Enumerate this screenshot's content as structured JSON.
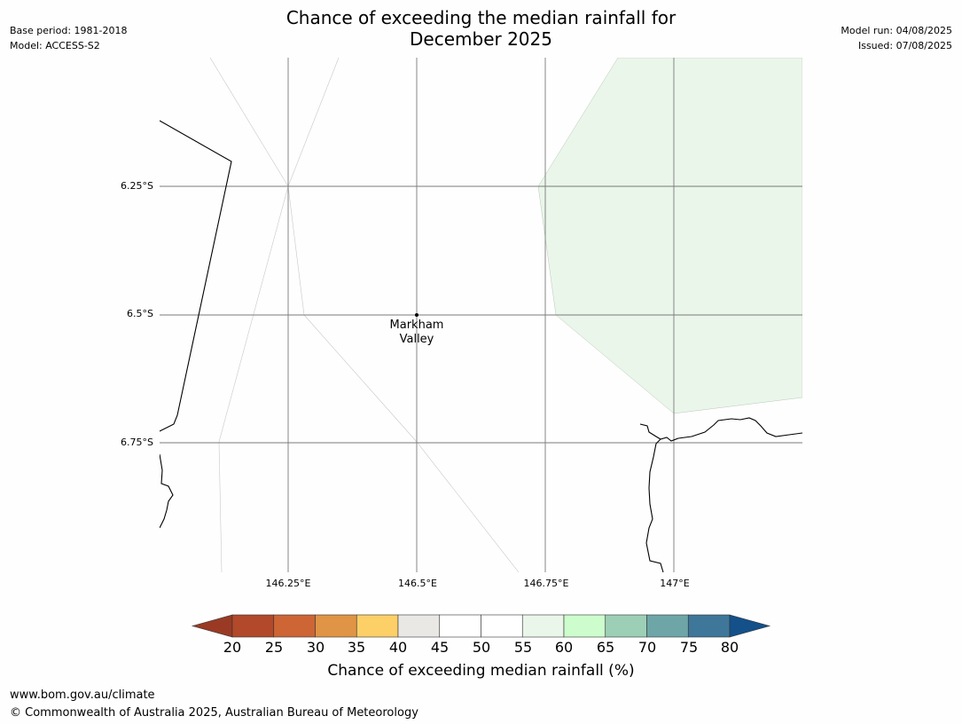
{
  "title_line1": "Chance of exceeding the median rainfall for",
  "title_line2": "December 2025",
  "meta_left": {
    "base_period": "Base period: 1981-2018",
    "model": "Model: ACCESS-S2"
  },
  "meta_right": {
    "model_run": "Model run: 04/08/2025",
    "issued": "Issued: 07/08/2025"
  },
  "map": {
    "lat_ticks": [
      "6.25°S",
      "6.5°S",
      "6.75°S"
    ],
    "lon_ticks": [
      "146.25°E",
      "146.5°E",
      "146.75°E",
      "147°E"
    ],
    "place": {
      "name_line1": "Markham",
      "name_line2": "Valley",
      "lon": 146.5,
      "lat": -6.5
    },
    "shaded_category": {
      "range": "55-60",
      "color": "#eaf6ea"
    }
  },
  "colorbar": {
    "title": "Chance of exceeding median rainfall (%)",
    "tick_labels": [
      "20",
      "25",
      "30",
      "35",
      "40",
      "45",
      "50",
      "55",
      "60",
      "65",
      "70",
      "75",
      "80"
    ],
    "low_extend_color": "#9a3a24",
    "high_extend_color": "#14508a",
    "colors": [
      "#b2492a",
      "#cd6535",
      "#e09445",
      "#fdcf67",
      "#e9e8e5",
      "#ffffff",
      "#ffffff",
      "#eaf6ea",
      "#cdfccd",
      "#9dcfb6",
      "#6ea6a8",
      "#3e7799"
    ]
  },
  "footer": {
    "url": "www.bom.gov.au/climate",
    "copyright": "© Commonwealth of Australia 2025, Australian Bureau of Meteorology"
  }
}
